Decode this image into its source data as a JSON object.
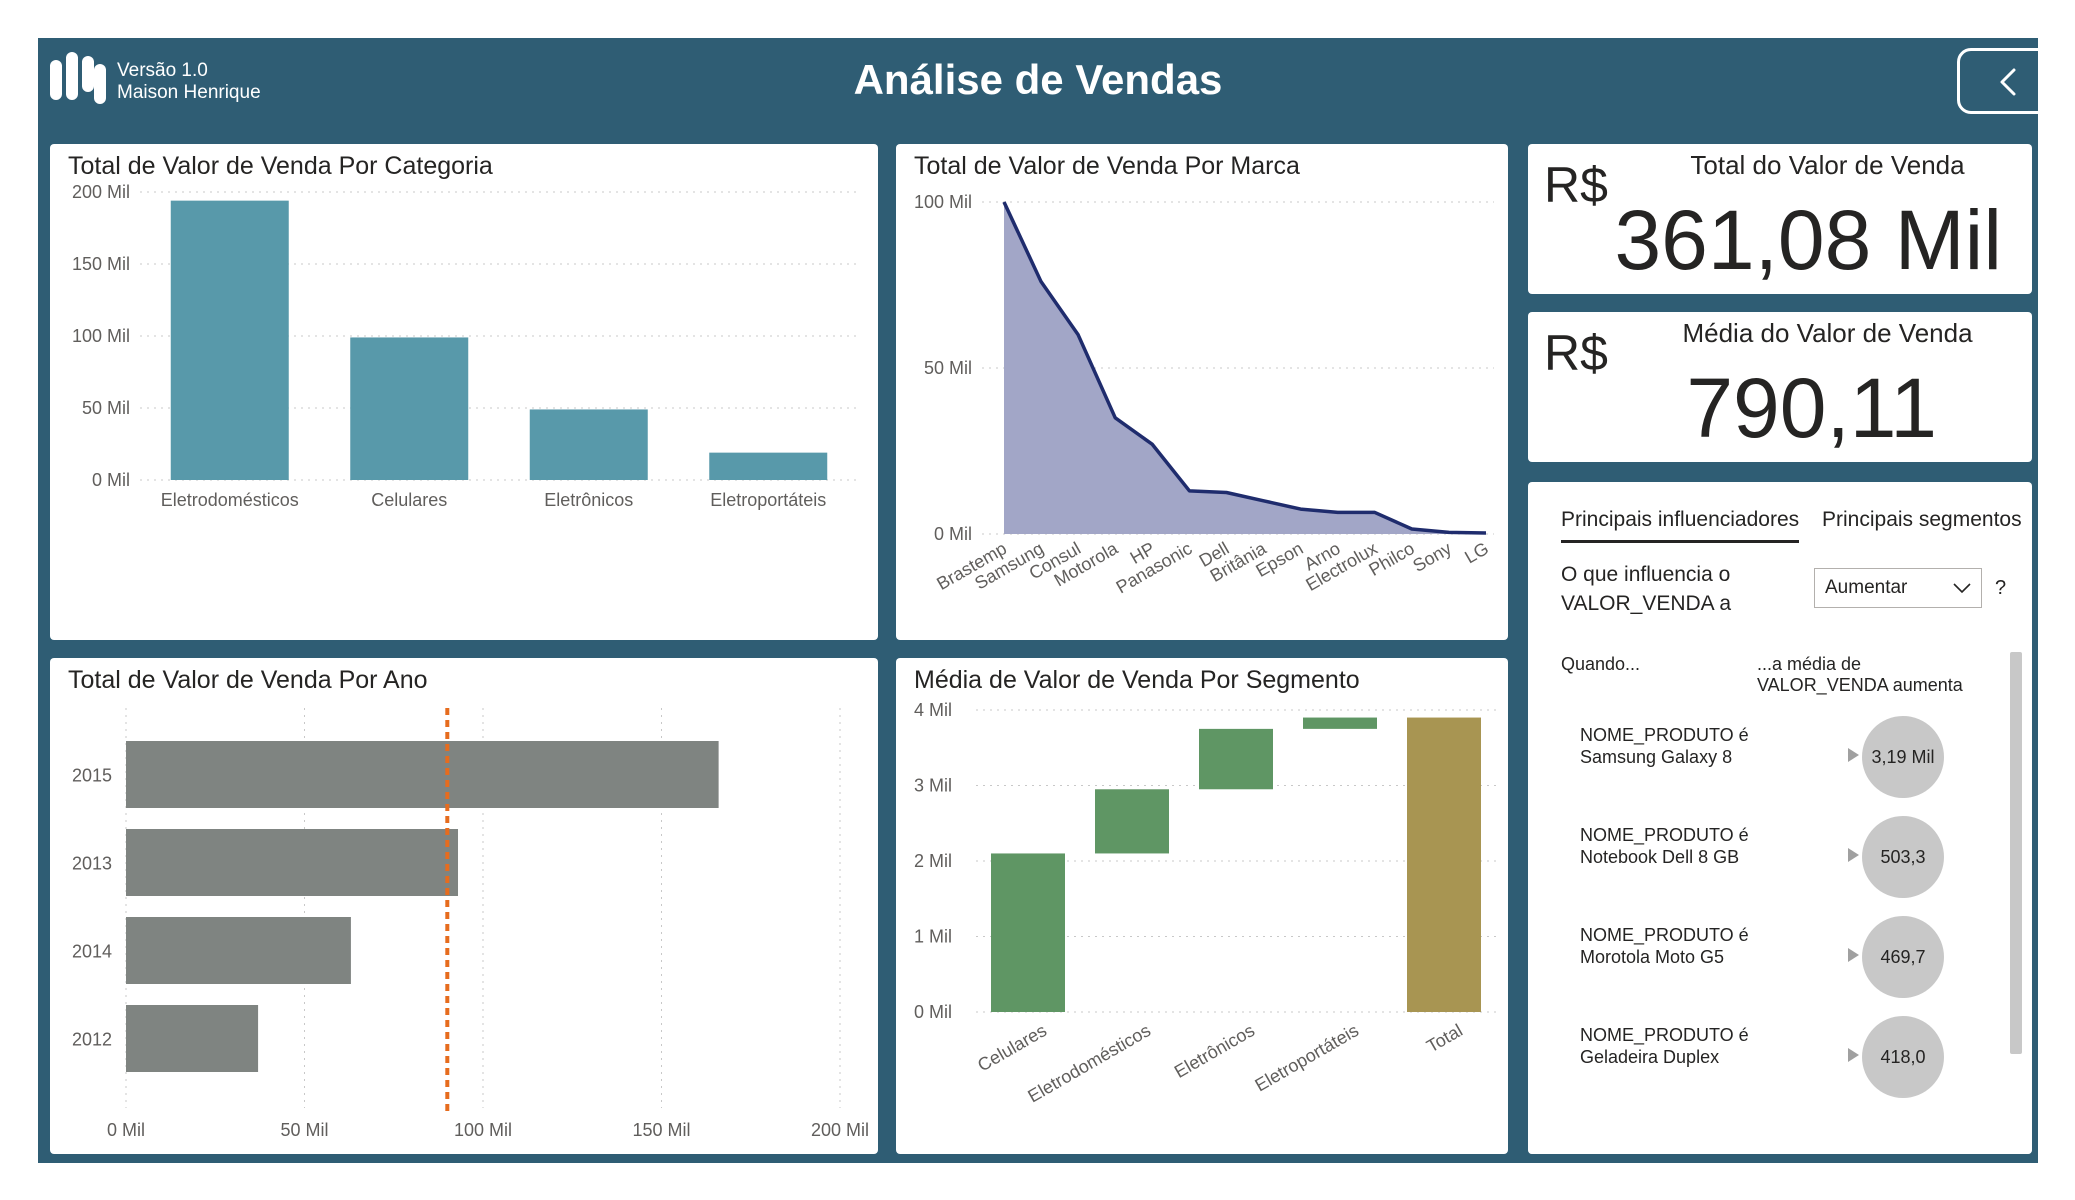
{
  "header": {
    "version": "Versão 1.0",
    "company": "Maison Henrique",
    "title": "Análise de Vendas",
    "back_icon": "chevron-left-icon"
  },
  "colors": {
    "frame": "#2f5d74",
    "category_bar": "#5899aa",
    "brand_area": "#a2a6c7",
    "brand_line": "#1f2c6d",
    "year_bar": "#7f8481",
    "average_line": "#e66c1e",
    "segment_step": "#5f9664",
    "segment_total": "#a89552"
  },
  "charts": {
    "categoria": {
      "title": "Total de Valor de Venda Por Categoria"
    },
    "marca": {
      "title": "Total de Valor de Venda Por Marca"
    },
    "ano": {
      "title": "Total de Valor de Venda Por Ano"
    },
    "segmento": {
      "title": "Média de Valor de Venda Por Segmento"
    }
  },
  "kpis": {
    "total": {
      "currency": "R$",
      "label": "Total do Valor de Venda",
      "value": "361,08 Mil"
    },
    "media": {
      "currency": "R$",
      "label": "Média do Valor de Venda",
      "value": "790,11"
    }
  },
  "influencers": {
    "tabs": [
      "Principais influenciadores",
      "Principais segmentos"
    ],
    "active_tab": "Principais influenciadores",
    "question": "O que influencia o VALOR_VENDA a",
    "dropdown_value": "Aumentar",
    "help": "?",
    "col_when": "Quando...",
    "col_then": "...a média de VALOR_VENDA aumenta",
    "items": [
      {
        "field": "NOME_PRODUTO é",
        "value": "Samsung Galaxy 8",
        "impact": "3,19 Mil"
      },
      {
        "field": "NOME_PRODUTO é",
        "value": "Notebook Dell 8 GB",
        "impact": "503,3"
      },
      {
        "field": "NOME_PRODUTO é",
        "value": "Morotola Moto G5",
        "impact": "469,7"
      },
      {
        "field": "NOME_PRODUTO é",
        "value": "Geladeira Duplex",
        "impact": "418,0"
      }
    ]
  },
  "chart_data": [
    {
      "type": "bar",
      "title": "Total de Valor de Venda Por Categoria",
      "categories": [
        "Eletrodomésticos",
        "Celulares",
        "Eletrônicos",
        "Eletroportáteis"
      ],
      "values": [
        194000,
        99000,
        49000,
        19000
      ],
      "ylim": [
        0,
        200000
      ],
      "yticks": [
        0,
        50000,
        100000,
        150000,
        200000
      ],
      "ytick_labels": [
        "0 Mil",
        "50 Mil",
        "100 Mil",
        "150 Mil",
        "200 Mil"
      ],
      "grid": true
    },
    {
      "type": "area",
      "title": "Total de Valor de Venda Por Marca",
      "categories": [
        "Brastemp",
        "Samsung",
        "Consul",
        "Motorola",
        "HP",
        "Panasonic",
        "Dell",
        "Britânia",
        "Epson",
        "Arno",
        "Electrolux",
        "Philco",
        "Sony",
        "LG"
      ],
      "values": [
        100000,
        76000,
        60000,
        35000,
        27000,
        13000,
        12500,
        10000,
        7500,
        6500,
        6500,
        1500,
        500,
        300
      ],
      "ylim": [
        0,
        100000
      ],
      "yticks": [
        0,
        50000,
        100000
      ],
      "ytick_labels": [
        "0 Mil",
        "50 Mil",
        "100 Mil"
      ],
      "grid": true
    },
    {
      "type": "bar",
      "orientation": "horizontal",
      "title": "Total de Valor de Venda Por Ano",
      "categories": [
        "2015",
        "2013",
        "2014",
        "2012"
      ],
      "values": [
        166000,
        93000,
        63000,
        37000
      ],
      "average_line": 90000,
      "xlim": [
        0,
        200000
      ],
      "xticks": [
        0,
        50000,
        100000,
        150000,
        200000
      ],
      "xtick_labels": [
        "0 Mil",
        "50 Mil",
        "100 Mil",
        "150 Mil",
        "200 Mil"
      ],
      "grid": true
    },
    {
      "type": "bar",
      "subtype": "waterfall",
      "title": "Média de Valor de Venda Por Segmento",
      "categories": [
        "Celulares",
        "Eletrodomésticos",
        "Eletrônicos",
        "Eletroportáteis",
        "Total"
      ],
      "values": [
        2100,
        850,
        800,
        150,
        3900
      ],
      "ylim": [
        0,
        4000
      ],
      "yticks": [
        0,
        1000,
        2000,
        3000,
        4000
      ],
      "ytick_labels": [
        "0 Mil",
        "1 Mil",
        "2 Mil",
        "3 Mil",
        "4 Mil"
      ],
      "grid": true
    }
  ]
}
